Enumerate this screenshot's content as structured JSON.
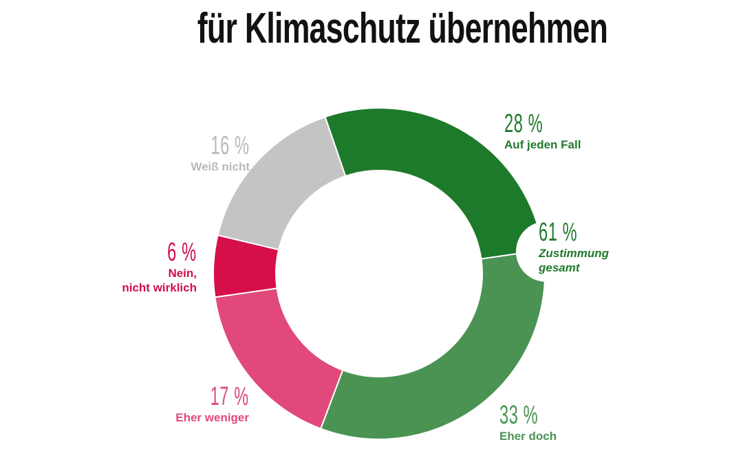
{
  "title": "für Klimaschutz übernehmen",
  "chart_data": {
    "type": "pie",
    "subtype": "donut",
    "title": "für Klimaschutz übernehmen",
    "categories": [
      "Auf jeden Fall",
      "Eher doch",
      "Eher weniger",
      "Nein, nicht wirklich",
      "Weiß nicht"
    ],
    "values": [
      28,
      33,
      17,
      6,
      16
    ],
    "unit": "%",
    "colors": [
      "#1d7a2a",
      "#4a9352",
      "#e0497a",
      "#d60f4a",
      "#c4c4c4"
    ],
    "annotations": [
      {
        "value": "61 %",
        "text": "Zustimmung gesamt",
        "refers_to": [
          "Auf jeden Fall",
          "Eher doch"
        ]
      }
    ],
    "legend": "none (direct labels)"
  },
  "labels": {
    "auf_jeden_fall": {
      "pct": "28 %",
      "text": "Auf jeden Fall",
      "color": "#1f7a2c"
    },
    "zustimmung": {
      "pct": "61 %",
      "text1": "Zustimmung",
      "text2": "gesamt",
      "color": "#1f7a2c"
    },
    "eher_doch": {
      "pct": "33 %",
      "text": "Eher doch",
      "color": "#4a9352"
    },
    "eher_weniger": {
      "pct": "17 %",
      "text": "Eher weniger",
      "color": "#e0497a"
    },
    "nein": {
      "pct": "6 %",
      "text1": "Nein,",
      "text2": "nicht wirklich",
      "color": "#d00f48"
    },
    "weiss_nicht": {
      "pct": "16 %",
      "text": "Weiß nicht",
      "color": "#b9b9b9"
    }
  }
}
